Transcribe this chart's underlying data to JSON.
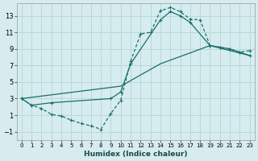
{
  "xlabel": "Humidex (Indice chaleur)",
  "bg_color": "#d6ecee",
  "grid_color": "#b8d8da",
  "line_color": "#1a6e6a",
  "xlim": [
    -0.5,
    23.5
  ],
  "ylim": [
    -2,
    14.5
  ],
  "xticks": [
    0,
    1,
    2,
    3,
    4,
    5,
    6,
    7,
    8,
    9,
    10,
    11,
    12,
    13,
    14,
    15,
    16,
    17,
    18,
    19,
    20,
    21,
    22,
    23
  ],
  "yticks": [
    -1,
    1,
    3,
    5,
    7,
    9,
    11,
    13
  ],
  "line1_x": [
    0,
    1,
    2,
    3,
    4,
    5,
    6,
    7,
    8,
    9,
    10,
    11,
    12,
    13,
    14,
    15,
    16,
    17,
    18,
    19,
    20,
    21,
    22,
    23
  ],
  "line1_y": [
    3.0,
    2.2,
    1.8,
    1.1,
    0.9,
    0.4,
    0.0,
    -0.3,
    -0.7,
    1.2,
    2.8,
    7.5,
    10.8,
    11.0,
    13.6,
    14.0,
    13.5,
    12.6,
    12.5,
    9.4,
    9.2,
    9.0,
    8.6,
    8.8
  ],
  "line2_x": [
    0,
    1,
    3,
    9,
    10,
    11,
    14,
    15,
    16,
    17,
    19,
    20,
    21,
    22,
    23
  ],
  "line2_y": [
    3.0,
    2.2,
    2.5,
    3.0,
    3.8,
    7.2,
    12.5,
    13.5,
    13.0,
    12.2,
    9.4,
    9.2,
    9.0,
    8.6,
    8.2
  ],
  "line3_x": [
    0,
    10,
    14,
    19,
    23
  ],
  "line3_y": [
    3.0,
    4.5,
    7.2,
    9.4,
    8.2
  ]
}
